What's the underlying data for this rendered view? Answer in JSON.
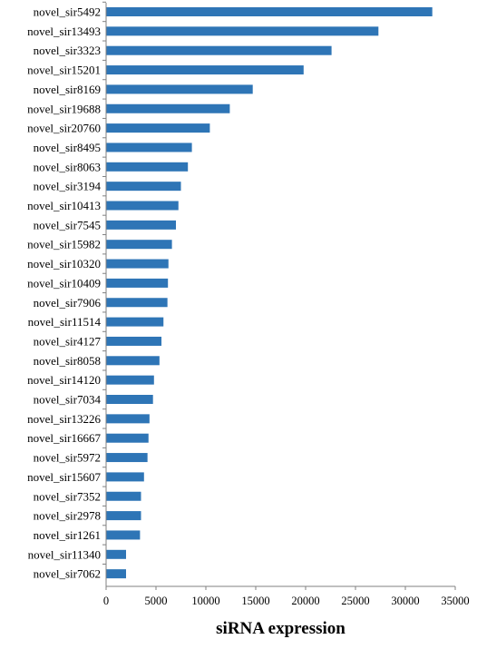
{
  "chart_data": {
    "type": "bar",
    "orientation": "horizontal",
    "categories": [
      "novel_sir5492",
      "novel_sir13493",
      "novel_sir3323",
      "novel_sir15201",
      "novel_sir8169",
      "novel_sir19688",
      "novel_sir20760",
      "novel_sir8495",
      "novel_sir8063",
      "novel_sir3194",
      "novel_sir10413",
      "novel_sir7545",
      "novel_sir15982",
      "novel_sir10320",
      "novel_sir10409",
      "novel_sir7906",
      "novel_sir11514",
      "novel_sir4127",
      "novel_sir8058",
      "novel_sir14120",
      "novel_sir7034",
      "novel_sir13226",
      "novel_sir16667",
      "novel_sir5972",
      "novel_sir15607",
      "novel_sir7352",
      "novel_sir2978",
      "novel_sir1261",
      "novel_sir11340",
      "novel_sir7062"
    ],
    "values": [
      32700,
      27300,
      22600,
      19800,
      14700,
      12400,
      10400,
      8600,
      8200,
      7500,
      7250,
      7000,
      6600,
      6250,
      6200,
      6150,
      5750,
      5550,
      5350,
      4800,
      4700,
      4350,
      4250,
      4150,
      3800,
      3500,
      3500,
      3400,
      2000,
      2000
    ],
    "title": "",
    "xlabel": "siRNA expression",
    "ylabel": "",
    "xlim": [
      0,
      35000
    ],
    "xticks": [
      0,
      5000,
      10000,
      15000,
      20000,
      25000,
      30000,
      35000
    ],
    "xtick_labels": [
      "0",
      "5000",
      "10000",
      "15000",
      "20000",
      "25000",
      "30000",
      "35000"
    ],
    "bar_color": "#2E75B6",
    "axis_color": "#808080",
    "grid": false,
    "legend": "none"
  }
}
